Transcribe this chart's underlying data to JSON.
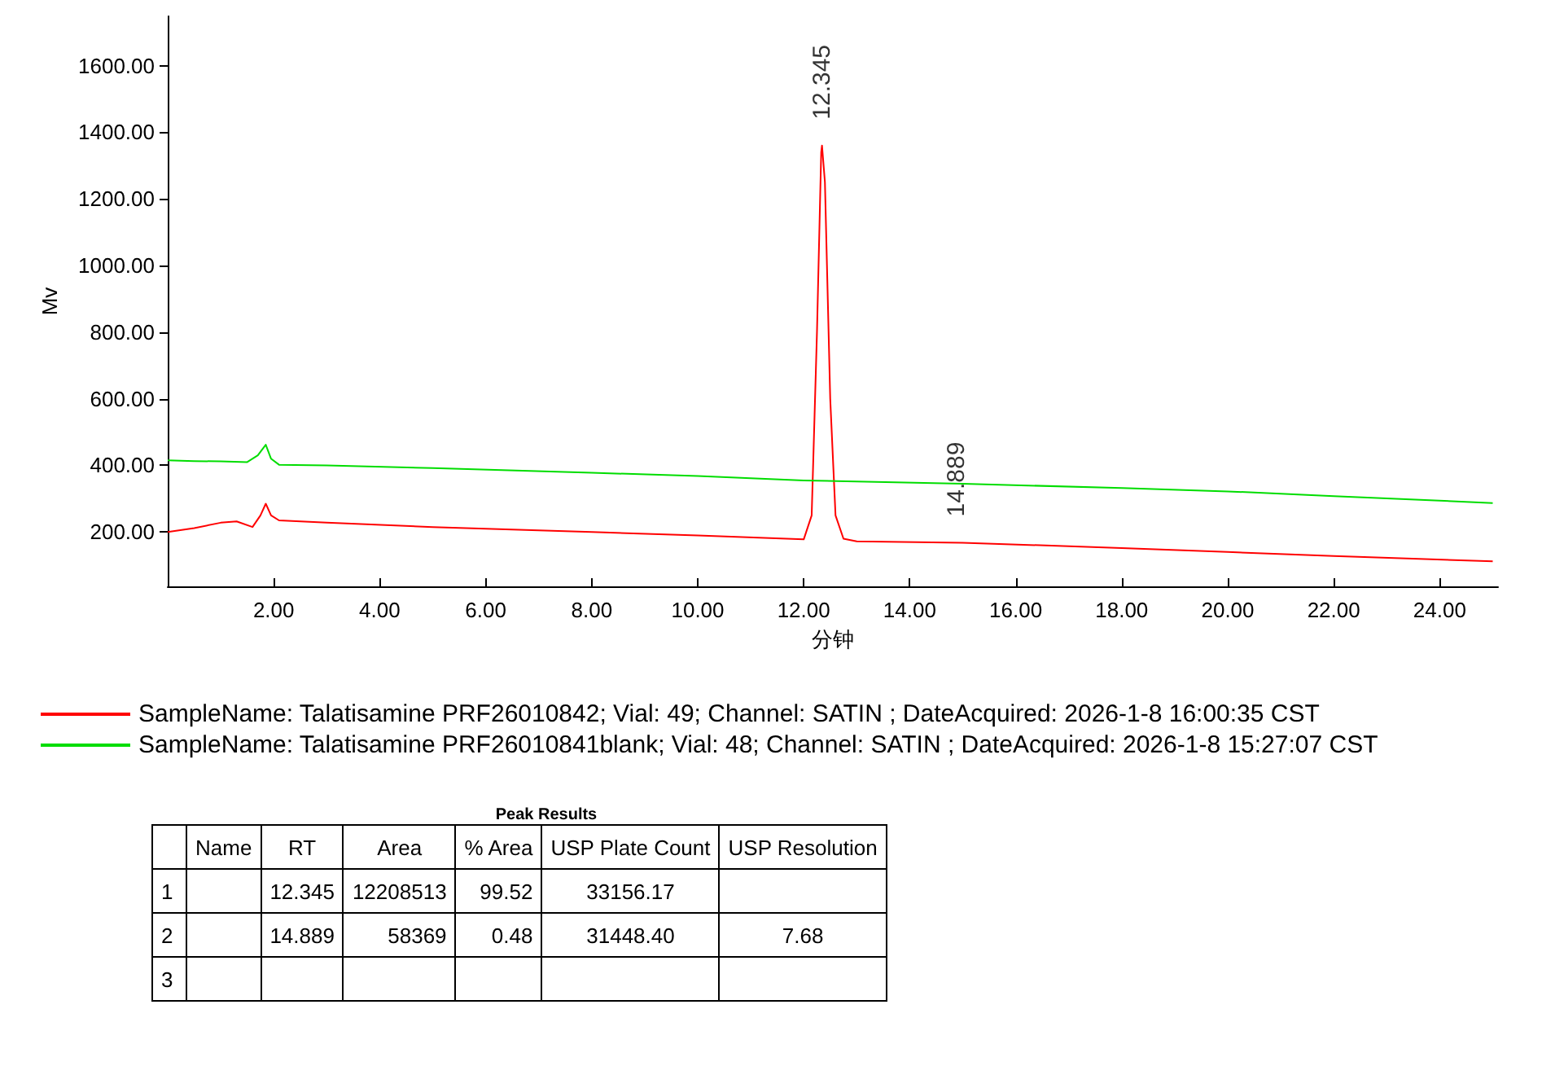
{
  "chart_data": {
    "type": "line",
    "xlabel": "分钟",
    "ylabel": "Mv",
    "xlim": [
      0,
      25.1
    ],
    "ylim": [
      37,
      1748
    ],
    "xticks": [
      {
        "value": 2,
        "label": "2.00"
      },
      {
        "value": 4,
        "label": "4.00"
      },
      {
        "value": 6,
        "label": "6.00"
      },
      {
        "value": 8,
        "label": "8.00"
      },
      {
        "value": 10,
        "label": "10.00"
      },
      {
        "value": 12,
        "label": "12.00"
      },
      {
        "value": 14,
        "label": "14.00"
      },
      {
        "value": 16,
        "label": "16.00"
      },
      {
        "value": 18,
        "label": "18.00"
      },
      {
        "value": 20,
        "label": "20.00"
      },
      {
        "value": 22,
        "label": "22.00"
      },
      {
        "value": 24,
        "label": "24.00"
      }
    ],
    "yticks": [
      {
        "value": 200,
        "label": "200.00"
      },
      {
        "value": 400,
        "label": "400.00"
      },
      {
        "value": 600,
        "label": "600.00"
      },
      {
        "value": 800,
        "label": "800.00"
      },
      {
        "value": 1000,
        "label": "1000.00"
      },
      {
        "value": 1200,
        "label": "1200.00"
      },
      {
        "value": 1400,
        "label": "1400.00"
      },
      {
        "value": 1600,
        "label": "1600.00"
      }
    ],
    "grid": false,
    "legend": "bottom",
    "marker": "none",
    "line_style": "solid",
    "series": [
      {
        "name": "SampleName: Talatisamine PRF26010842; Vial: 49; Channel: SATIN ; DateAcquired: 2026-1-8 16:00:35 CST",
        "color": "#ff0000",
        "x": [
          0,
          0.5,
          1.0,
          1.3,
          1.6,
          1.75,
          1.85,
          1.95,
          2.1,
          3,
          5,
          8,
          10,
          12,
          12.15,
          12.25,
          12.33,
          12.345,
          12.4,
          12.5,
          12.6,
          12.75,
          13,
          15,
          18,
          20,
          22,
          25
        ],
        "values": [
          200,
          212,
          228,
          232,
          215,
          250,
          285,
          250,
          235,
          228,
          215,
          200,
          190,
          178,
          250,
          800,
          1340,
          1360,
          1250,
          600,
          250,
          180,
          172,
          168,
          152,
          140,
          128,
          112
        ]
      },
      {
        "name": "SampleName: Talatisamine PRF26010841blank; Vial: 48; Channel: SATIN ; DateAcquired: 2026-1-8 15:27:07 CST",
        "color": "#00dd00",
        "x": [
          0,
          0.5,
          1.0,
          1.5,
          1.7,
          1.85,
          1.95,
          2.1,
          3,
          5,
          8,
          10,
          12,
          15,
          18,
          20,
          22,
          25
        ],
        "values": [
          415,
          413,
          412,
          410,
          430,
          462,
          420,
          402,
          400,
          392,
          378,
          368,
          355,
          345,
          332,
          322,
          308,
          287
        ]
      }
    ],
    "annotations": [
      {
        "text": "12.345",
        "x": 12.345,
        "y": 1360
      },
      {
        "text": "14.889",
        "x": 14.889,
        "y": 168
      },
      "Peak Results",
      "\tName\tRT\tArea\t% Area\tUSP Plate Count\tUSP Resolution",
      "1\t\t12.345\t12208513\t99.52\t33156.17\t",
      "2\t\t14.889\t58369\t0.48\t31448.40\t7.68",
      "3\t\t\t\t\t\t"
    ]
  }
}
